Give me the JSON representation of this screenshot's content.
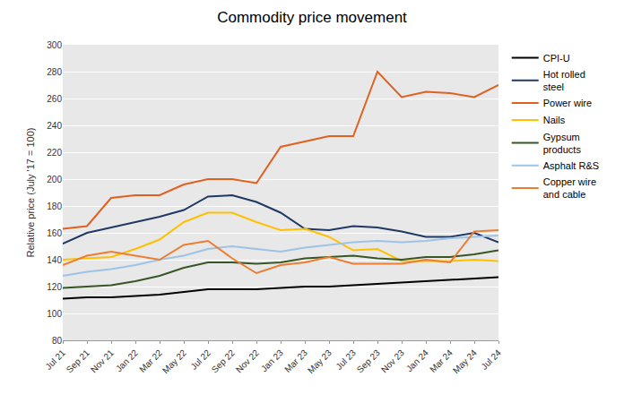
{
  "chart_data": {
    "type": "line",
    "title": "Commodity price movement",
    "ylabel": "Relative price (July '17 = 100)",
    "categories": [
      "Jul 21",
      "Sep 21",
      "Nov 21",
      "Jan 22",
      "Mar 22",
      "May 22",
      "Jul 22",
      "Sep 22",
      "Nov 22",
      "Jan 23",
      "Mar 23",
      "May 23",
      "Jul 23",
      "Sep 23",
      "Nov 23",
      "Jan 24",
      "Mar 24",
      "May 24",
      "Jul 24"
    ],
    "ylim": [
      80,
      300
    ],
    "yticks": [
      80,
      100,
      120,
      140,
      160,
      180,
      200,
      220,
      240,
      260,
      280,
      300
    ],
    "grid": true,
    "legend": "upper right",
    "series": [
      {
        "name": "CPI-U",
        "color": "#000000",
        "values": [
          111,
          112,
          112,
          113,
          114,
          116,
          118,
          118,
          118,
          119,
          120,
          120,
          121,
          122,
          123,
          124,
          125,
          126,
          127
        ]
      },
      {
        "name": "Hot rolled\nsteel",
        "color": "#1f3864",
        "values": [
          152,
          160,
          164,
          168,
          172,
          177,
          187,
          188,
          183,
          175,
          163,
          162,
          165,
          164,
          161,
          157,
          157,
          160,
          153
        ]
      },
      {
        "name": "Power wire",
        "color": "#e06020",
        "values": [
          163,
          165,
          186,
          188,
          188,
          196,
          200,
          200,
          197,
          224,
          228,
          232,
          232,
          280,
          261,
          265,
          264,
          261,
          270
        ]
      },
      {
        "name": "Nails",
        "color": "#ffc000",
        "values": [
          140,
          141,
          142,
          148,
          155,
          168,
          175,
          175,
          168,
          162,
          163,
          157,
          147,
          148,
          139,
          139,
          139,
          140,
          139
        ]
      },
      {
        "name": "Gypsum\nproducts",
        "color": "#375623",
        "values": [
          119,
          120,
          121,
          124,
          128,
          134,
          138,
          138,
          137,
          138,
          141,
          142,
          143,
          141,
          140,
          142,
          142,
          144,
          147
        ]
      },
      {
        "name": "Asphalt R&S",
        "color": "#9dc3e6",
        "values": [
          128,
          131,
          133,
          136,
          140,
          143,
          148,
          150,
          148,
          146,
          149,
          151,
          153,
          154,
          153,
          154,
          156,
          157,
          158
        ]
      },
      {
        "name": "Copper wire\nand cable",
        "color": "#ed7d31",
        "values": [
          136,
          143,
          146,
          143,
          140,
          151,
          154,
          141,
          130,
          136,
          138,
          142,
          137,
          137,
          137,
          140,
          138,
          161,
          162
        ]
      }
    ]
  }
}
